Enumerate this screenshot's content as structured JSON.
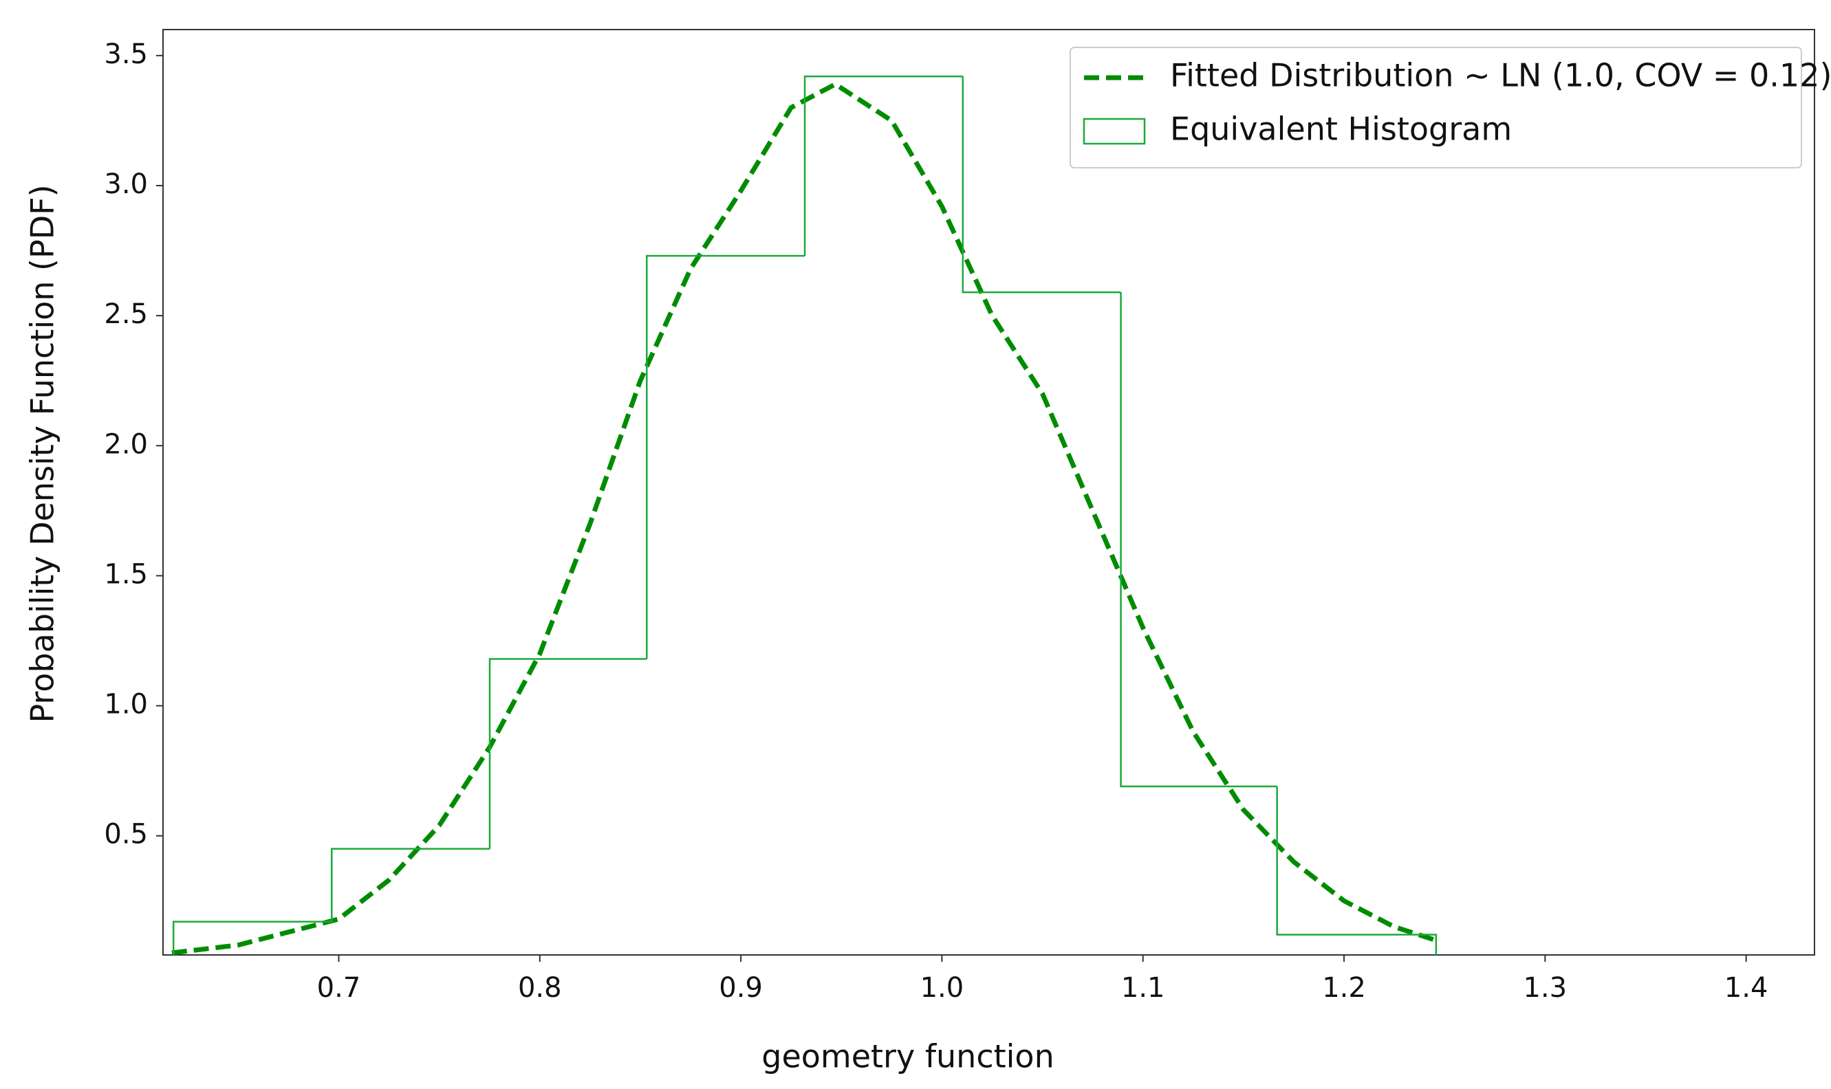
{
  "chart_data": {
    "type": "histogram",
    "x_label": "geometry function",
    "y_label": "Probability Density Function (PDF)",
    "xlim": [
      0.6126,
      1.434
    ],
    "ylim": [
      0.042,
      3.6
    ],
    "xticks": [
      0.7,
      0.8,
      0.9,
      {
        "value": 1.0,
        "label": "1.0"
      },
      1.1,
      1.2,
      1.3,
      1.4
    ],
    "yticks": [
      0.5,
      {
        "value": 1.0,
        "label": "1.0"
      },
      1.5,
      {
        "value": 2.0,
        "label": "2.0"
      },
      2.5,
      {
        "value": 3.0,
        "label": "3.0"
      },
      3.5
    ],
    "grid": false,
    "legend": "upper right",
    "series": [
      {
        "name": "Fitted Distribution ~ LN (1.0, COV = 0.12)",
        "type": "line",
        "color": "#008c00",
        "dashed": true,
        "x": [
          0.617,
          0.65,
          0.7,
          0.725,
          0.75,
          0.775,
          0.8,
          0.825,
          0.85,
          0.875,
          0.9,
          0.925,
          0.947,
          0.975,
          1.0,
          1.025,
          1.05,
          1.075,
          1.1,
          1.125,
          1.15,
          1.175,
          1.2,
          1.225,
          1.245
        ],
        "values": [
          0.05,
          0.08,
          0.18,
          0.33,
          0.54,
          0.84,
          1.2,
          1.7,
          2.25,
          2.68,
          2.98,
          3.3,
          3.39,
          3.25,
          2.92,
          2.5,
          2.2,
          1.75,
          1.3,
          0.9,
          0.6,
          0.4,
          0.25,
          0.15,
          0.1
        ]
      },
      {
        "name": "Equivalent Histogram",
        "type": "step",
        "color": "#1aaa3a",
        "bins": [
          0.6178,
          0.6965,
          0.7751,
          0.8532,
          0.9318,
          1.0104,
          1.089,
          1.1667,
          1.2458
        ],
        "values": [
          0.17,
          0.45,
          1.18,
          2.73,
          3.42,
          2.59,
          0.69,
          0.12
        ]
      }
    ]
  }
}
